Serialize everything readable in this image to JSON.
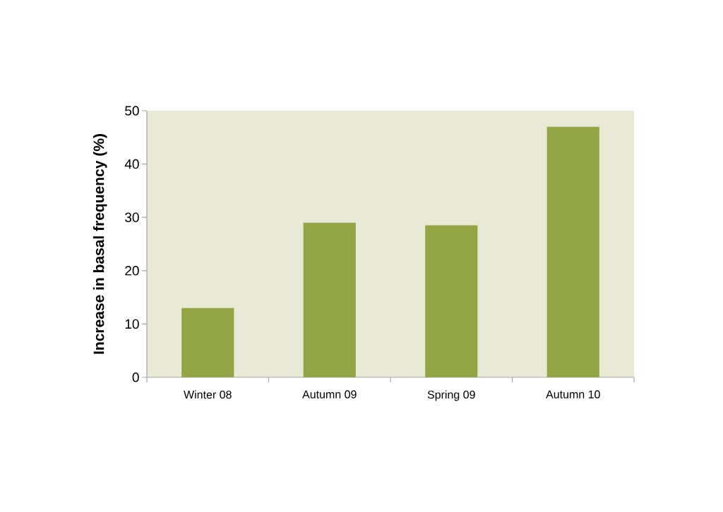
{
  "chart_data": {
    "type": "bar",
    "ylabel": "Increase in basal frequency (%)",
    "categories": [
      "Winter 08",
      "Autumn 09",
      "Spring 09",
      "Autumn 10"
    ],
    "values": [
      13,
      29,
      28.5,
      47
    ],
    "color": "#93a545",
    "ylim": [
      0,
      50
    ],
    "yticks": [
      0,
      10,
      20,
      30,
      40,
      50
    ]
  }
}
